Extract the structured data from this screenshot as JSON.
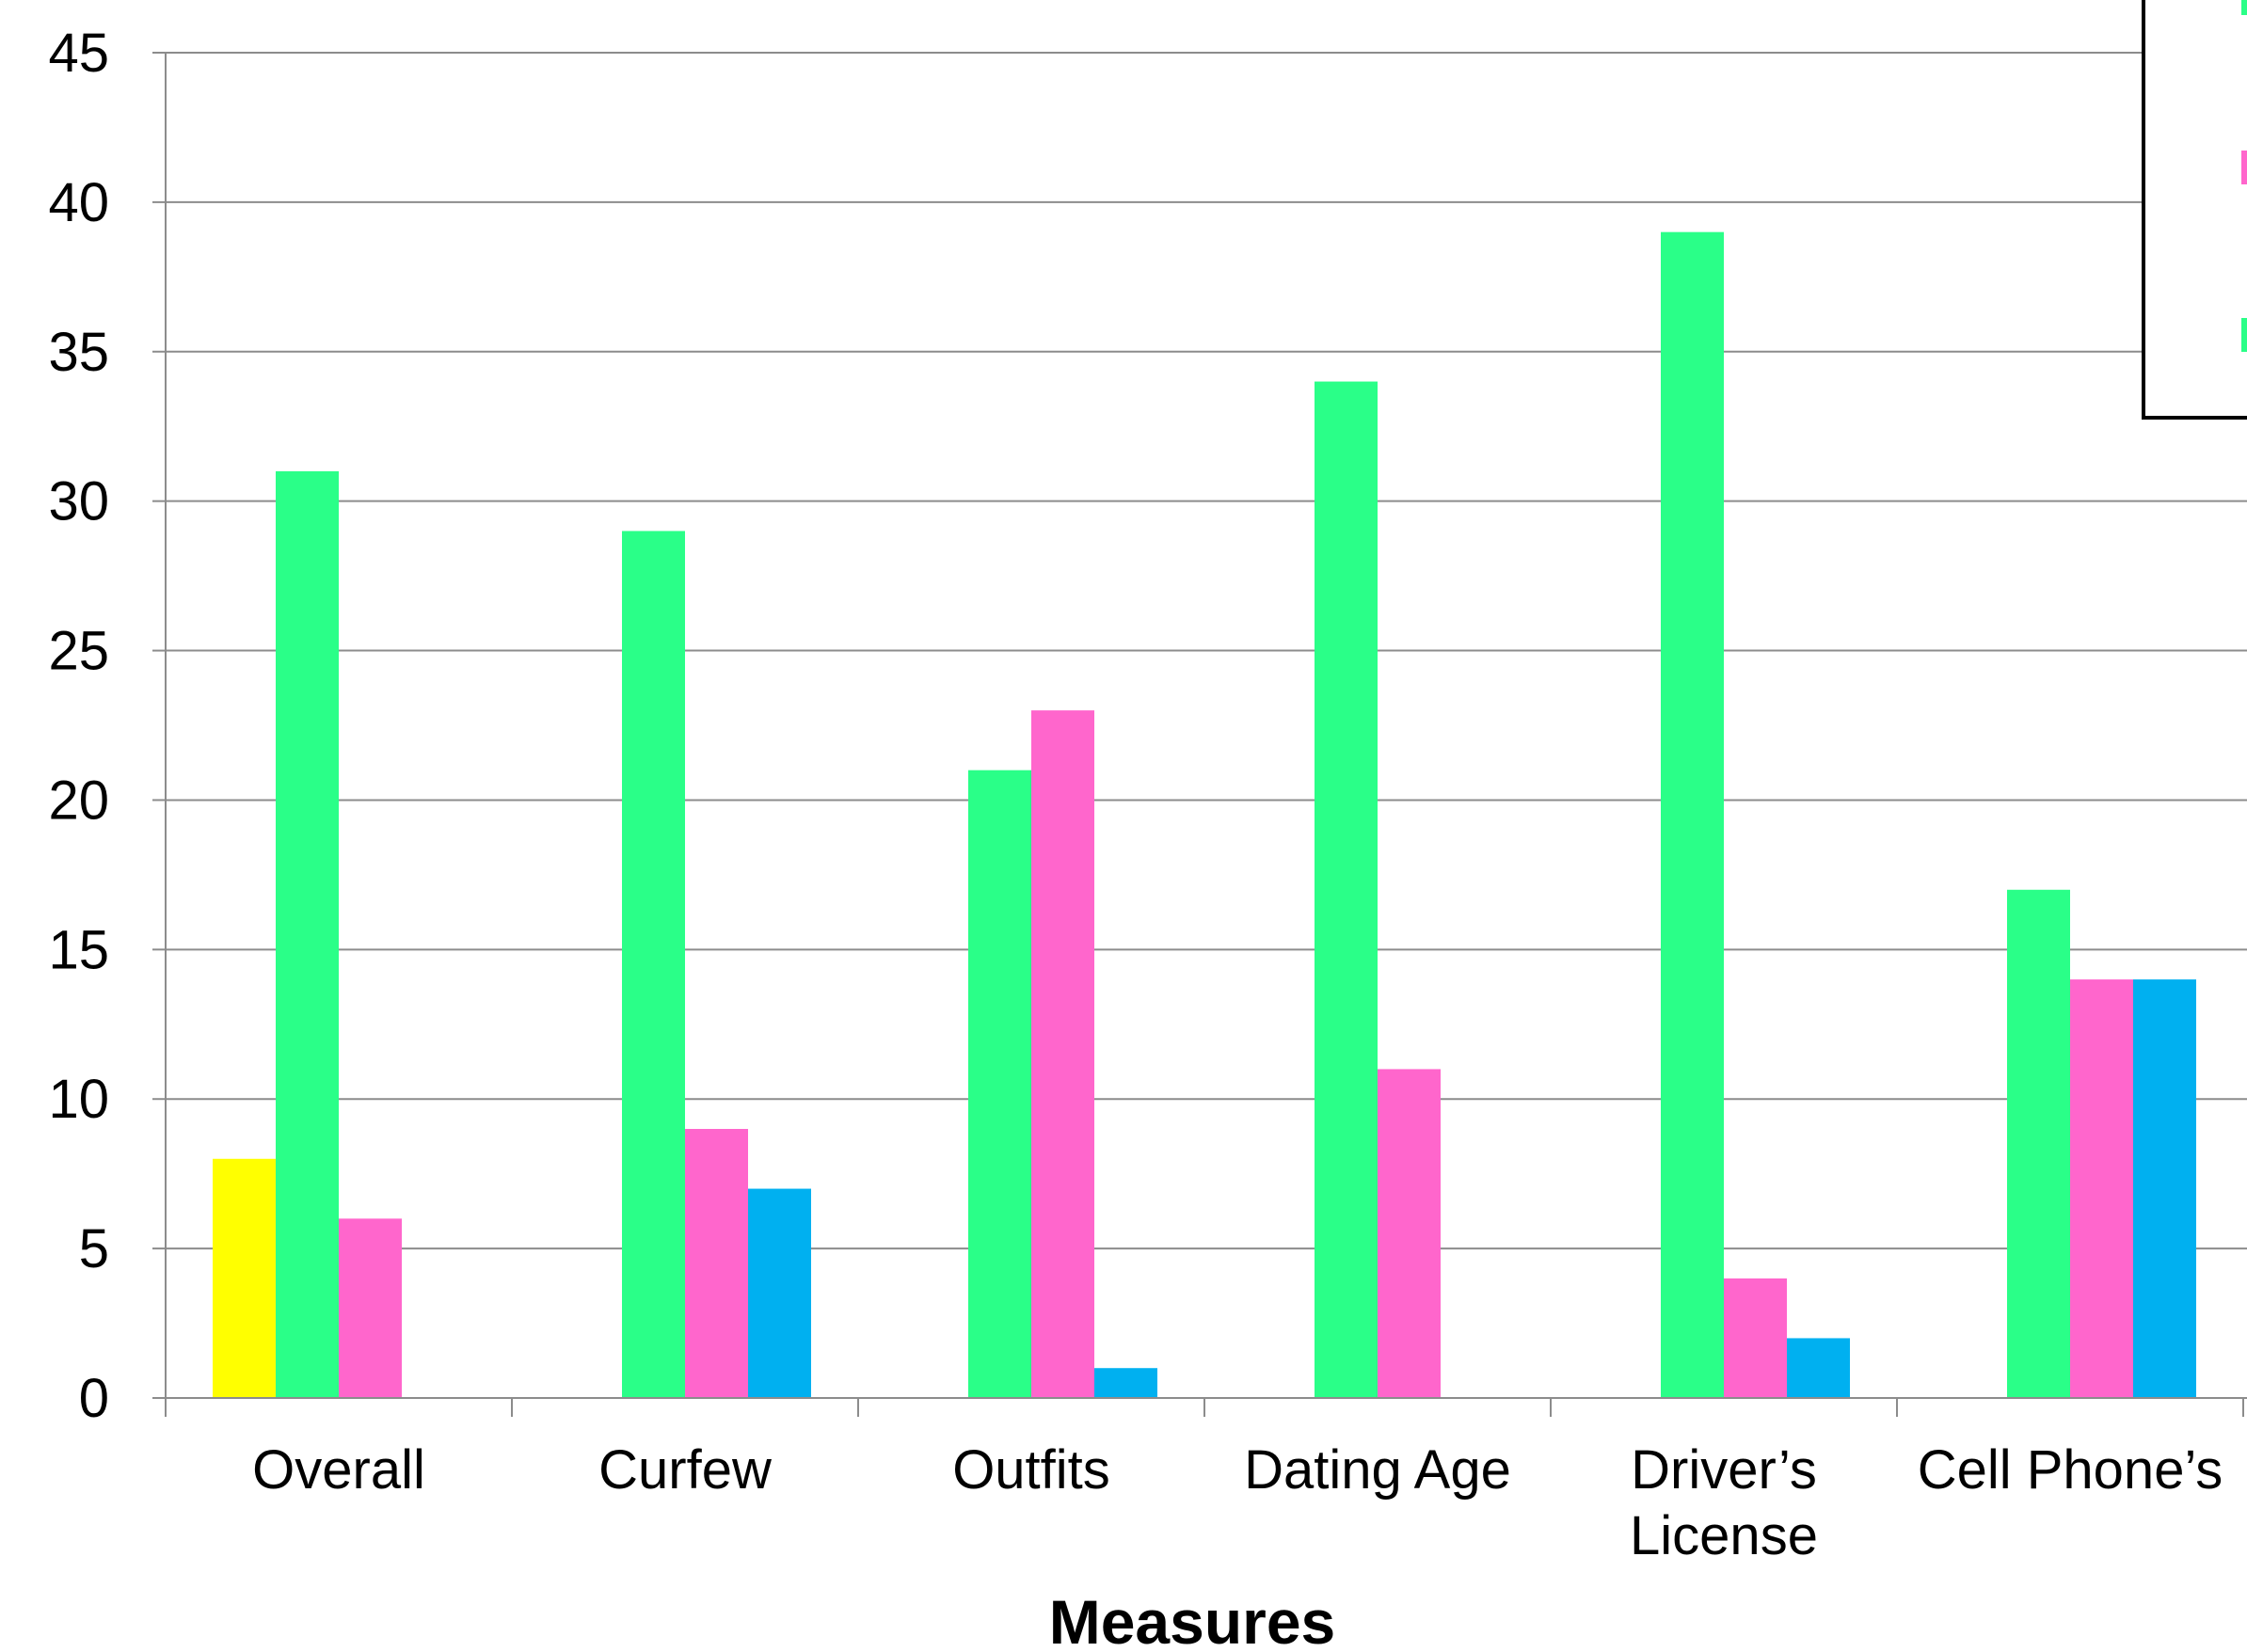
{
  "chart_data": {
    "type": "bar",
    "title": "",
    "xlabel": "Measures",
    "ylabel": "",
    "ylim": [
      0,
      45
    ],
    "yticks": [
      0,
      5,
      10,
      15,
      20,
      25,
      30,
      35,
      40,
      45
    ],
    "grid": true,
    "legend_placement": "top-right (partially cropped)",
    "categories": [
      [
        "Overall"
      ],
      [
        "Curfew"
      ],
      [
        "Outfits"
      ],
      [
        "Dating Age"
      ],
      [
        "Driver’s",
        "License"
      ],
      [
        "Cell Phone’s"
      ]
    ],
    "series": [
      {
        "color": "#ffff00",
        "values": [
          8,
          0,
          0,
          0,
          0,
          0
        ]
      },
      {
        "color": "#2aff88",
        "values": [
          31,
          29,
          21,
          34,
          39,
          17
        ]
      },
      {
        "color": "#ff66cc",
        "values": [
          6,
          9,
          23,
          11,
          4,
          14
        ]
      },
      {
        "color": "#00b0f0",
        "values": [
          0,
          7,
          1,
          0,
          2,
          14
        ]
      }
    ]
  }
}
